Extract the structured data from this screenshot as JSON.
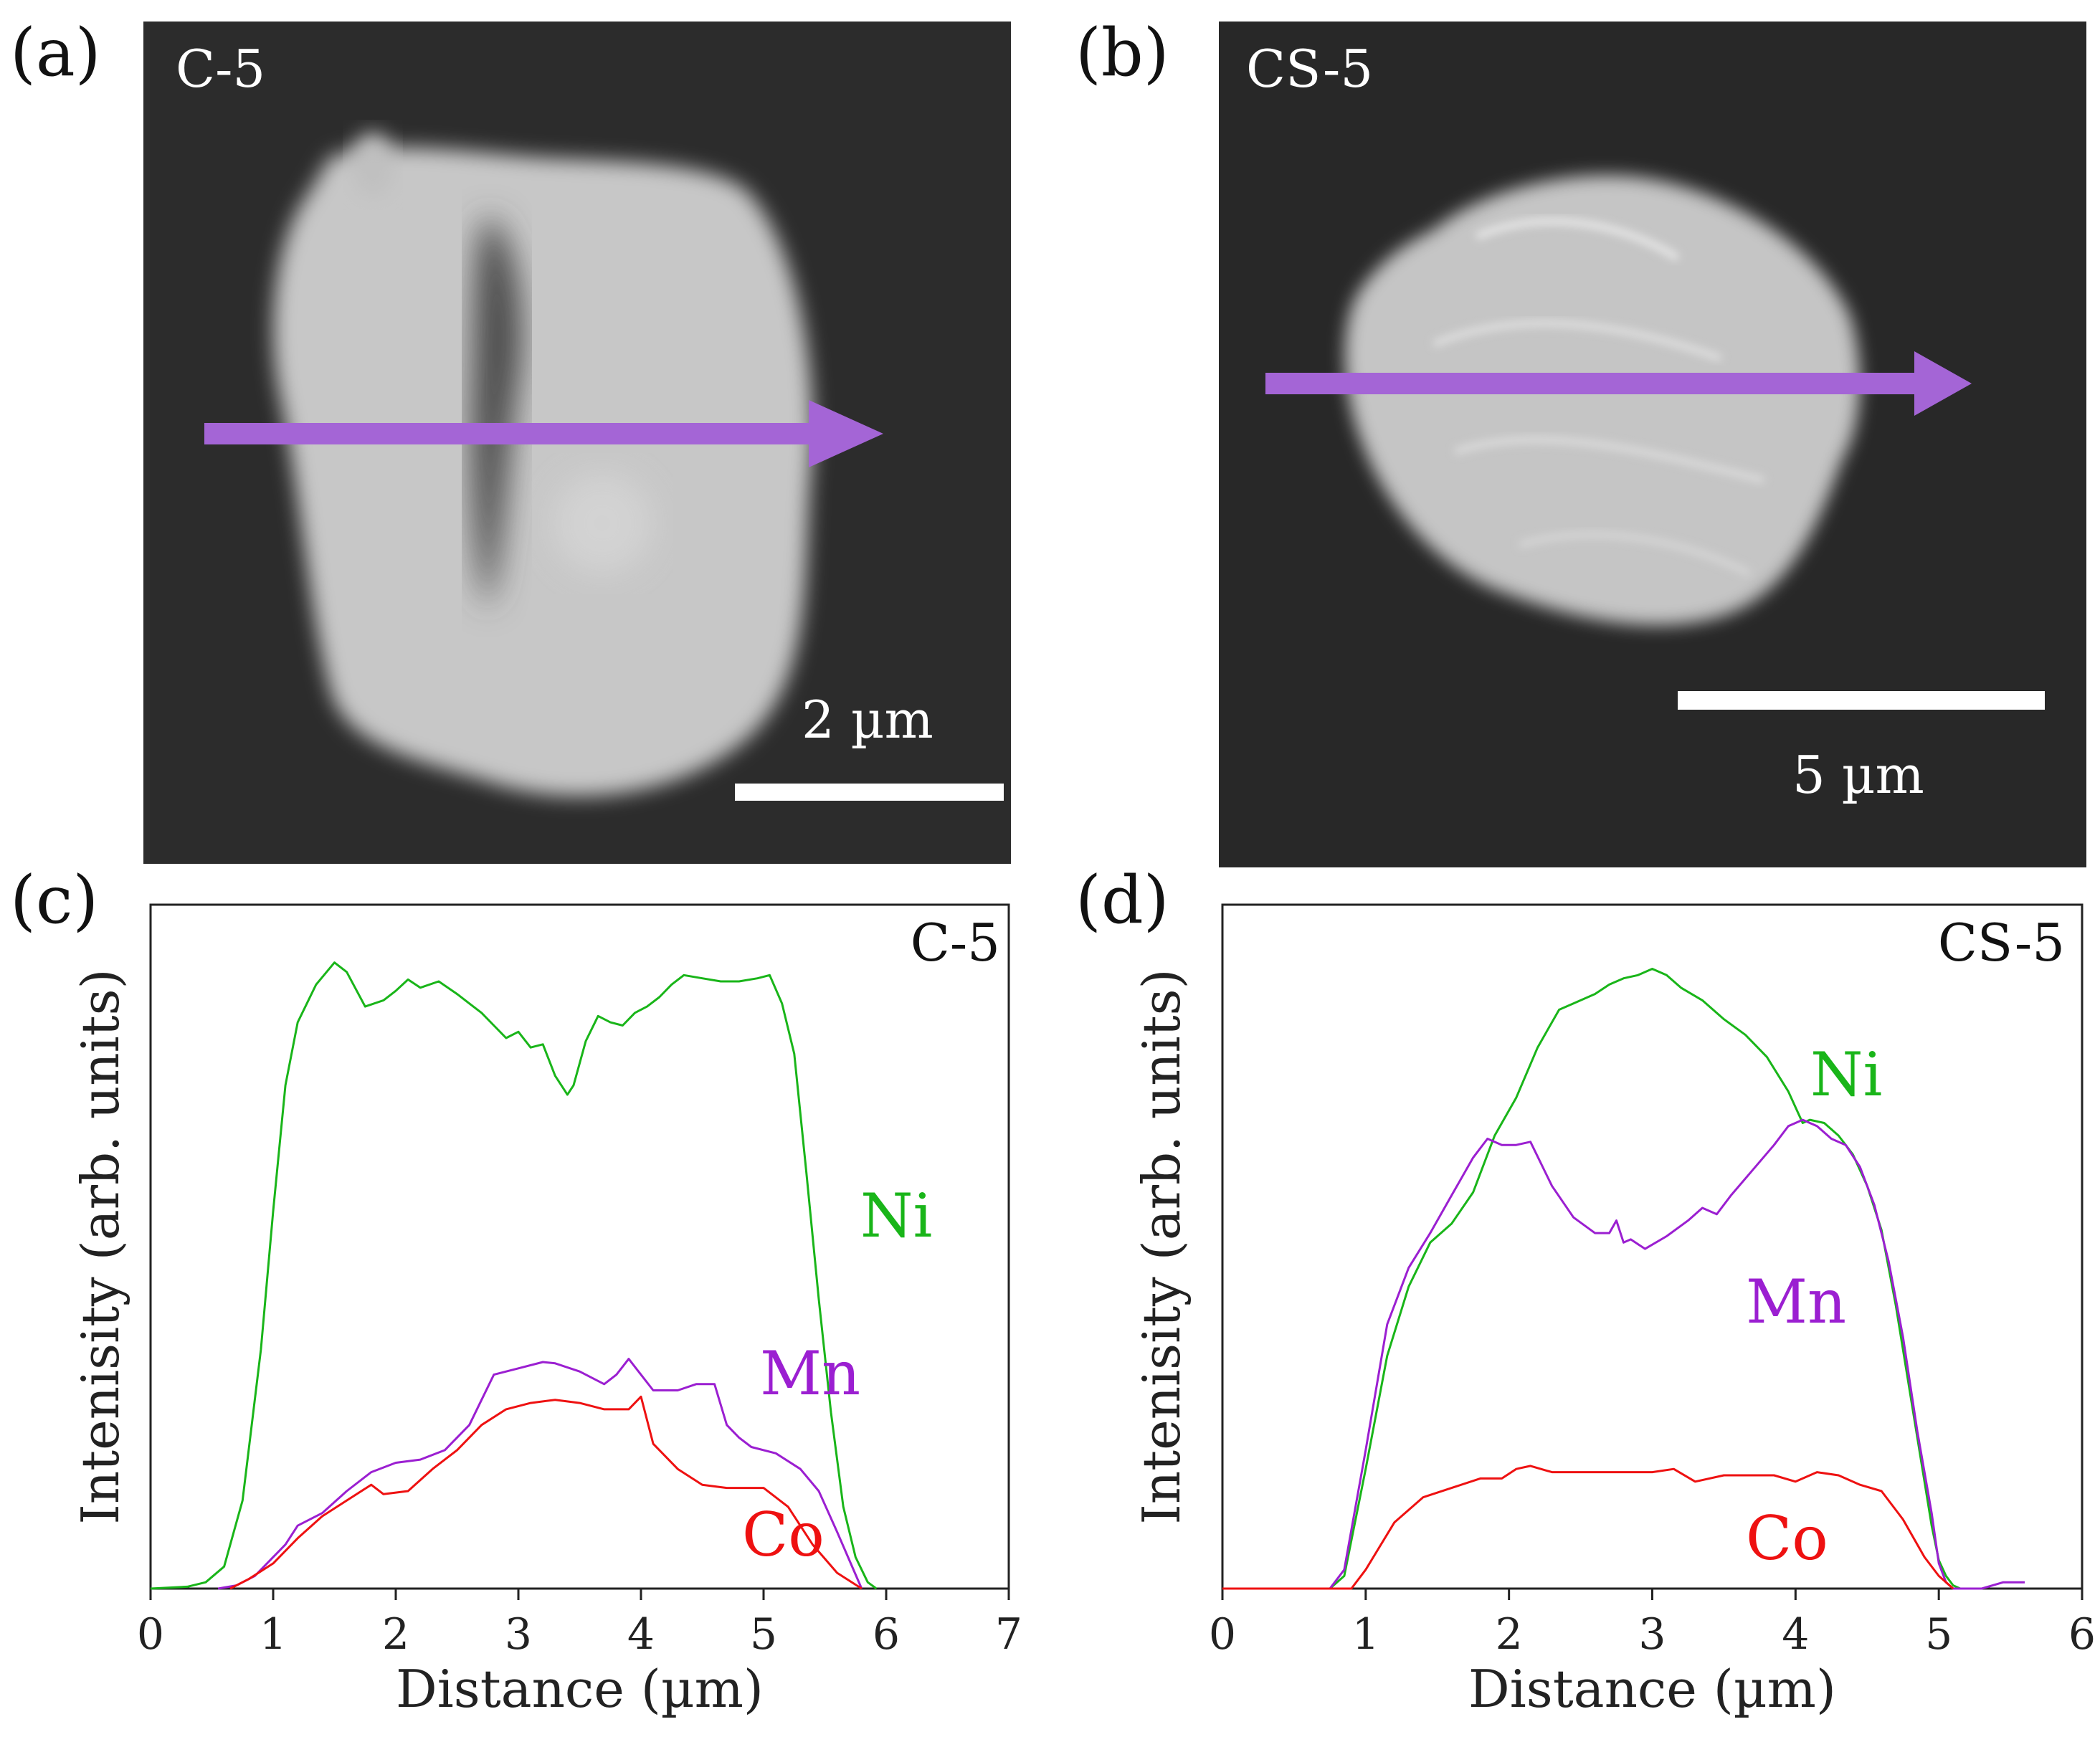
{
  "panels": {
    "a": {
      "letter": "(a)",
      "sample": "C-5",
      "scale_bar": "2 µm"
    },
    "b": {
      "letter": "(b)",
      "sample": "CS-5",
      "scale_bar": "5 µm"
    },
    "c": {
      "letter": "(c)"
    },
    "d": {
      "letter": "(d)"
    }
  },
  "colors": {
    "arrow": "#a465d6",
    "Ni": "#19b519",
    "Mn": "#9b1fd1",
    "Co": "#ee1111",
    "sem_background": "#2e2e2e",
    "particle": "#c3c3c3"
  },
  "chart_data": [
    {
      "type": "line",
      "panel": "c",
      "title": "C-5",
      "xlabel": "Distance (µm)",
      "ylabel": "Intenisity (arb. units)",
      "xlim": [
        0,
        7
      ],
      "ylim": [
        0,
        100
      ],
      "xticks": [
        "0",
        "1",
        "2",
        "3",
        "4",
        "5",
        "6",
        "7"
      ],
      "series": [
        {
          "name": "Ni",
          "label": "Ni",
          "x": [
            0,
            0.3,
            0.45,
            0.6,
            0.75,
            0.9,
            1.0,
            1.1,
            1.2,
            1.35,
            1.5,
            1.6,
            1.75,
            1.9,
            2.0,
            2.1,
            2.2,
            2.35,
            2.5,
            2.6,
            2.7,
            2.8,
            2.9,
            3.0,
            3.1,
            3.2,
            3.3,
            3.4,
            3.45,
            3.55,
            3.65,
            3.75,
            3.85,
            3.95,
            4.05,
            4.15,
            4.25,
            4.35,
            4.5,
            4.65,
            4.8,
            4.95,
            5.05,
            5.15,
            5.25,
            5.35,
            5.45,
            5.55,
            5.65,
            5.75,
            5.85,
            5.92
          ],
          "y": [
            0,
            0.3,
            1,
            3.5,
            14,
            38,
            60,
            80,
            90,
            96,
            99.5,
            98,
            92.5,
            93.5,
            95,
            96.8,
            95.5,
            96.5,
            94.5,
            93,
            91.5,
            89.5,
            87.5,
            88.5,
            86,
            86.5,
            81.5,
            78.5,
            80,
            87,
            91,
            90,
            89.5,
            91.5,
            92.5,
            94,
            96,
            97.5,
            97,
            96.5,
            96.5,
            97,
            97.5,
            93,
            85,
            66,
            46,
            28,
            13,
            5,
            1,
            0
          ]
        },
        {
          "name": "Mn",
          "label": "Mn",
          "x": [
            0.55,
            0.7,
            0.85,
            1.0,
            1.1,
            1.2,
            1.4,
            1.6,
            1.8,
            2.0,
            2.2,
            2.4,
            2.6,
            2.7,
            2.8,
            3.0,
            3.2,
            3.3,
            3.5,
            3.7,
            3.8,
            3.9,
            4.0,
            4.1,
            4.3,
            4.45,
            4.6,
            4.7,
            4.8,
            4.9,
            5.1,
            5.3,
            5.45,
            5.6,
            5.7,
            5.8
          ],
          "y": [
            0,
            0.5,
            2,
            5,
            7,
            10,
            12,
            15.5,
            18.5,
            20,
            20.5,
            22,
            26,
            30,
            34,
            35,
            36,
            35.8,
            34.5,
            32.5,
            34,
            36.5,
            34,
            31.5,
            31.5,
            32.5,
            32.5,
            26,
            24,
            22.5,
            21.5,
            19,
            15.5,
            9,
            4.5,
            0
          ]
        },
        {
          "name": "Co",
          "label": "Co",
          "x": [
            0.65,
            0.8,
            1.0,
            1.2,
            1.4,
            1.6,
            1.8,
            1.9,
            2.1,
            2.3,
            2.5,
            2.7,
            2.9,
            3.1,
            3.3,
            3.5,
            3.7,
            3.9,
            4.0,
            4.1,
            4.3,
            4.5,
            4.7,
            5.0,
            5.2,
            5.4,
            5.6,
            5.8
          ],
          "y": [
            0,
            1.5,
            4,
            8,
            11.5,
            14,
            16.5,
            15,
            15.5,
            19,
            22,
            26,
            28.5,
            29.5,
            30,
            29.5,
            28.5,
            28.5,
            30.5,
            23,
            19,
            16.5,
            16,
            16,
            13,
            7,
            2.5,
            0
          ]
        }
      ]
    },
    {
      "type": "line",
      "panel": "d",
      "title": "CS-5",
      "xlabel": "Distance (µm)",
      "ylabel": "Intenisity (arb. units)",
      "xlim": [
        0,
        6
      ],
      "ylim": [
        0,
        100
      ],
      "xticks": [
        "0",
        "1",
        "2",
        "3",
        "4",
        "5",
        "6"
      ],
      "series": [
        {
          "name": "Ni",
          "label": "Ni",
          "x": [
            0.75,
            0.85,
            1.0,
            1.15,
            1.3,
            1.45,
            1.6,
            1.75,
            1.9,
            2.05,
            2.2,
            2.35,
            2.5,
            2.6,
            2.7,
            2.8,
            2.9,
            3.0,
            3.1,
            3.2,
            3.35,
            3.5,
            3.65,
            3.8,
            3.95,
            4.05,
            4.1,
            4.2,
            4.3,
            4.4,
            4.5,
            4.6,
            4.7,
            4.8,
            4.9,
            4.95,
            5.0,
            5.05,
            5.1,
            5.15
          ],
          "y": [
            0,
            2,
            19,
            37,
            48,
            55,
            58,
            63,
            72,
            78,
            86,
            92,
            93.5,
            94.5,
            96,
            97,
            97.5,
            98.5,
            97.5,
            95.5,
            93.5,
            90.5,
            88,
            84.5,
            79,
            74,
            74.5,
            74,
            72,
            69,
            64,
            57,
            45,
            31,
            17,
            10,
            4.5,
            2,
            0.5,
            0
          ]
        },
        {
          "name": "Mn",
          "label": "Mn",
          "x": [
            0.75,
            0.85,
            1.0,
            1.15,
            1.3,
            1.45,
            1.6,
            1.75,
            1.85,
            1.95,
            2.05,
            2.15,
            2.3,
            2.45,
            2.6,
            2.7,
            2.75,
            2.8,
            2.85,
            2.95,
            3.1,
            3.25,
            3.35,
            3.45,
            3.55,
            3.7,
            3.85,
            3.95,
            4.05,
            4.15,
            4.25,
            4.35,
            4.45,
            4.55,
            4.65,
            4.75,
            4.85,
            4.95,
            5.0,
            5.05,
            5.1,
            5.3,
            5.45,
            5.6
          ],
          "y": [
            0,
            3,
            22,
            42,
            51,
            56.5,
            62.5,
            68.5,
            71.5,
            70.5,
            70.5,
            71,
            64,
            59,
            56.5,
            56.5,
            58.5,
            55,
            55.5,
            54,
            56,
            58.5,
            60.5,
            59.5,
            62.5,
            66.5,
            70.5,
            73.5,
            74.5,
            73.5,
            71.5,
            70.5,
            67,
            61,
            52,
            40,
            25,
            12,
            4,
            1,
            0,
            0,
            1,
            1
          ]
        },
        {
          "name": "Co",
          "label": "Co",
          "x": [
            0,
            0.9,
            1.0,
            1.2,
            1.4,
            1.6,
            1.8,
            1.95,
            2.05,
            2.15,
            2.3,
            2.45,
            2.6,
            2.8,
            3.0,
            3.15,
            3.3,
            3.5,
            3.7,
            3.85,
            4.0,
            4.15,
            4.3,
            4.45,
            4.6,
            4.75,
            4.9,
            5.0,
            5.1
          ],
          "y": [
            0,
            0,
            3,
            10.5,
            14.5,
            16,
            17.5,
            17.5,
            19,
            19.5,
            18.5,
            18.5,
            18.5,
            18.5,
            18.5,
            19,
            17,
            18,
            18,
            18,
            17,
            18.5,
            18,
            16.5,
            15.5,
            11,
            5,
            2,
            0
          ]
        }
      ]
    }
  ]
}
